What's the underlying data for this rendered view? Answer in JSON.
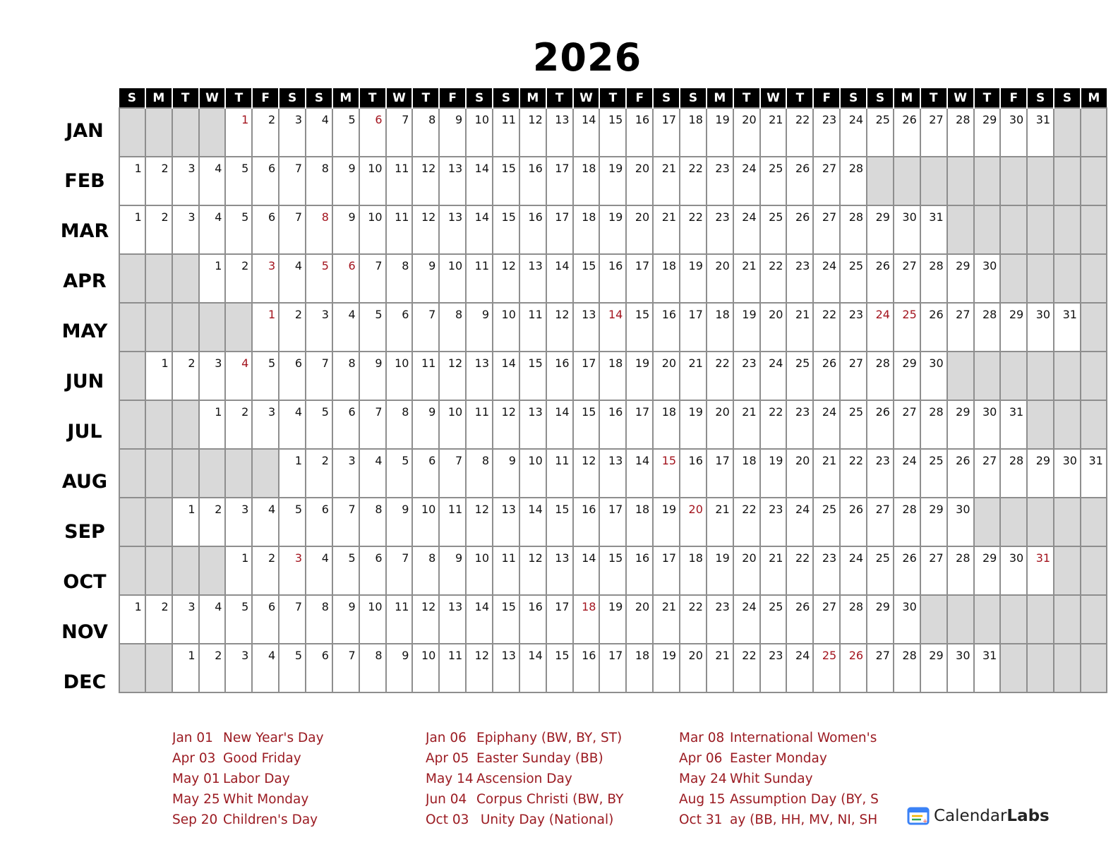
{
  "title": "2026",
  "weekday_header": [
    "S",
    "M",
    "T",
    "W",
    "T",
    "F",
    "S",
    "S",
    "M",
    "T",
    "W",
    "T",
    "F",
    "S",
    "S",
    "M",
    "T",
    "W",
    "T",
    "F",
    "S",
    "S",
    "M",
    "T",
    "W",
    "T",
    "F",
    "S",
    "S",
    "M",
    "T",
    "W",
    "T",
    "F",
    "S",
    "S",
    "M"
  ],
  "months": [
    {
      "name": "JAN",
      "start_weekday": 4,
      "days": 31,
      "holidays": [
        1,
        6
      ]
    },
    {
      "name": "FEB",
      "start_weekday": 0,
      "days": 28,
      "holidays": []
    },
    {
      "name": "MAR",
      "start_weekday": 0,
      "days": 31,
      "holidays": [
        8
      ]
    },
    {
      "name": "APR",
      "start_weekday": 3,
      "days": 30,
      "holidays": [
        3,
        5,
        6
      ]
    },
    {
      "name": "MAY",
      "start_weekday": 5,
      "days": 31,
      "holidays": [
        1,
        14,
        24,
        25
      ]
    },
    {
      "name": "JUN",
      "start_weekday": 1,
      "days": 30,
      "holidays": [
        4
      ]
    },
    {
      "name": "JUL",
      "start_weekday": 3,
      "days": 31,
      "holidays": []
    },
    {
      "name": "AUG",
      "start_weekday": 6,
      "days": 31,
      "holidays": [
        15
      ]
    },
    {
      "name": "SEP",
      "start_weekday": 2,
      "days": 30,
      "holidays": [
        20
      ]
    },
    {
      "name": "OCT",
      "start_weekday": 4,
      "days": 31,
      "holidays": [
        3,
        31
      ]
    },
    {
      "name": "NOV",
      "start_weekday": 0,
      "days": 30,
      "holidays": [
        18
      ]
    },
    {
      "name": "DEC",
      "start_weekday": 2,
      "days": 31,
      "holidays": [
        25,
        26
      ]
    }
  ],
  "colors": {
    "holiday": "#a3141e",
    "empty_cell": "#d9d9d9",
    "header_bg": "#000000",
    "grid_line": "#8e8e8e"
  },
  "legend": [
    [
      {
        "date": "Jan 01",
        "name": "New Year's Day"
      },
      {
        "date": "Apr 03",
        "name": "Good Friday"
      },
      {
        "date": "May 01",
        "name": "Labor Day"
      },
      {
        "date": "May 25",
        "name": "Whit Monday"
      },
      {
        "date": "Sep 20",
        "name": "Children's Day"
      }
    ],
    [
      {
        "date": "Jan 06",
        "name": "Epiphany (BW, BY, ST)"
      },
      {
        "date": "Apr 05",
        "name": "Easter Sunday (BB)"
      },
      {
        "date": "May 14",
        "name": "Ascension Day"
      },
      {
        "date": "Jun 04",
        "name": "Corpus Christi (BW, BY"
      },
      {
        "date": "Oct 03",
        "name": " Unity Day (National)"
      }
    ],
    [
      {
        "date": "Mar 08",
        "name": "International Women's"
      },
      {
        "date": "Apr 06",
        "name": "Easter Monday"
      },
      {
        "date": "May 24",
        "name": "Whit Sunday"
      },
      {
        "date": "Aug 15",
        "name": "Assumption Day (BY, Sl"
      },
      {
        "date": "Oct 31",
        "name": "ay (BB, HH, MV, NI, SH"
      }
    ]
  ],
  "logo": {
    "part1": "Calendar",
    "part2": "Labs",
    "icon": "calendar-icon"
  }
}
